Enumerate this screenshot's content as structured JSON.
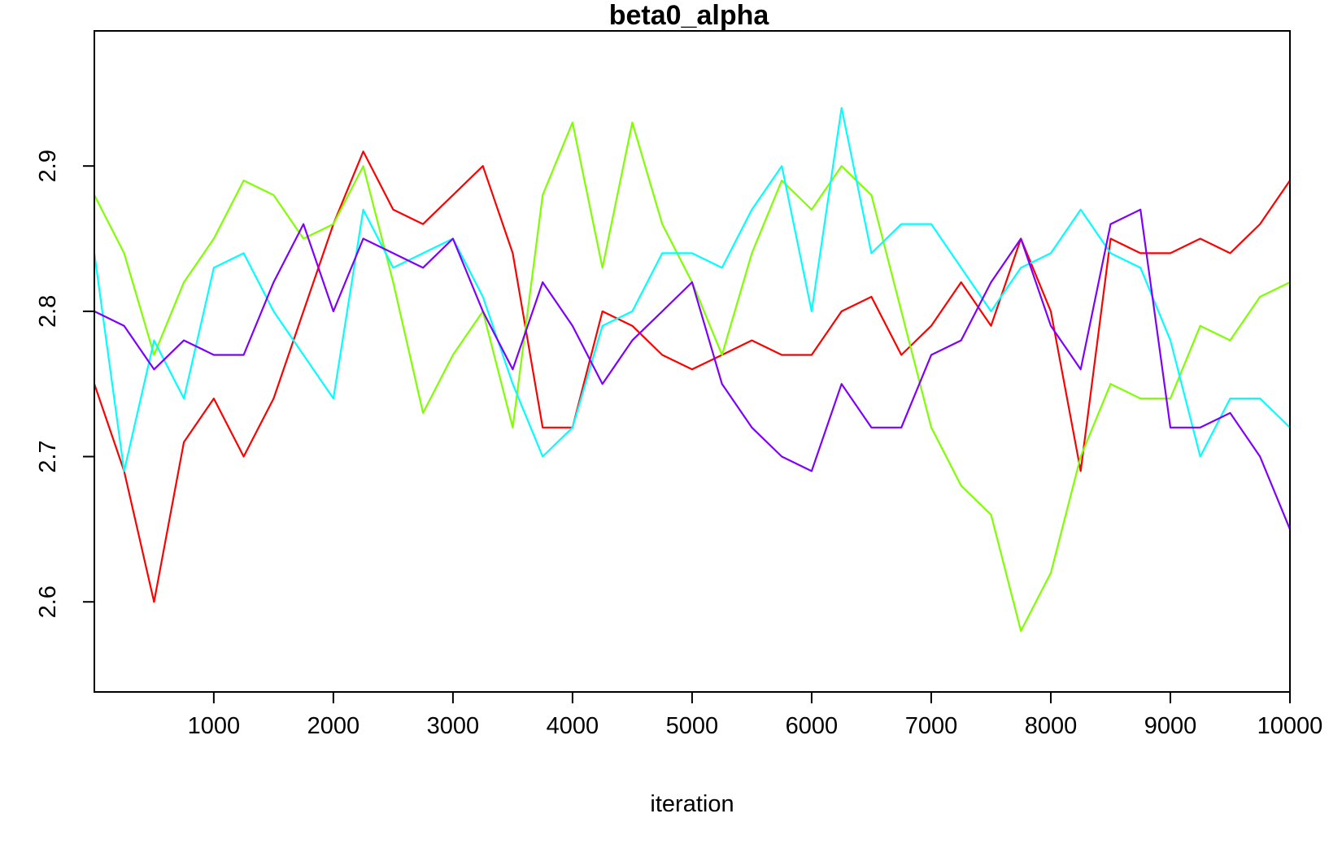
{
  "chart_data": {
    "type": "line",
    "title": "beta0_alpha",
    "xlabel": "iteration",
    "ylabel": "",
    "xlim": [
      1,
      10000
    ],
    "ylim": [
      2.538,
      2.993
    ],
    "x_ticks": [
      1000,
      2000,
      3000,
      4000,
      5000,
      6000,
      7000,
      8000,
      9000,
      10000
    ],
    "x_tick_labels": [
      "1000",
      "2000",
      "3000",
      "4000",
      "5000",
      "6000",
      "7000",
      "8000",
      "9000",
      "10000"
    ],
    "y_ticks": [
      2.6,
      2.7,
      2.8,
      2.9
    ],
    "y_tick_labels": [
      "2.6",
      "2.7",
      "2.8",
      "2.9"
    ],
    "grid": false,
    "legend": "none",
    "x": [
      0,
      250,
      500,
      750,
      1000,
      1250,
      1500,
      1750,
      2000,
      2250,
      2500,
      2750,
      3000,
      3250,
      3500,
      3750,
      4000,
      4250,
      4500,
      4750,
      5000,
      5250,
      5500,
      5750,
      6000,
      6250,
      6500,
      6750,
      7000,
      7250,
      7500,
      7750,
      8000,
      8250,
      8500,
      8750,
      9000,
      9250,
      9500,
      9750,
      10000
    ],
    "series": [
      {
        "color": "#ff0000",
        "values": [
          2.75,
          2.69,
          2.6,
          2.71,
          2.74,
          2.7,
          2.74,
          2.8,
          2.86,
          2.91,
          2.87,
          2.86,
          2.88,
          2.9,
          2.84,
          2.72,
          2.72,
          2.8,
          2.79,
          2.77,
          2.76,
          2.77,
          2.78,
          2.77,
          2.77,
          2.8,
          2.81,
          2.77,
          2.79,
          2.82,
          2.79,
          2.85,
          2.8,
          2.69,
          2.85,
          2.84,
          2.84,
          2.85,
          2.84,
          2.86,
          2.89
        ]
      },
      {
        "color": "#7fff00",
        "values": [
          2.88,
          2.84,
          2.77,
          2.82,
          2.85,
          2.89,
          2.88,
          2.85,
          2.86,
          2.9,
          2.82,
          2.73,
          2.77,
          2.8,
          2.72,
          2.88,
          2.93,
          2.83,
          2.93,
          2.86,
          2.82,
          2.77,
          2.84,
          2.89,
          2.87,
          2.9,
          2.88,
          2.8,
          2.72,
          2.68,
          2.66,
          2.58,
          2.62,
          2.7,
          2.75,
          2.74,
          2.74,
          2.79,
          2.78,
          2.81,
          2.82
        ]
      },
      {
        "color": "#00ffff",
        "values": [
          2.84,
          2.69,
          2.78,
          2.74,
          2.83,
          2.84,
          2.8,
          2.77,
          2.74,
          2.87,
          2.83,
          2.84,
          2.85,
          2.81,
          2.75,
          2.7,
          2.72,
          2.79,
          2.8,
          2.84,
          2.84,
          2.83,
          2.87,
          2.9,
          2.8,
          2.94,
          2.84,
          2.86,
          2.86,
          2.83,
          2.8,
          2.83,
          2.84,
          2.87,
          2.84,
          2.83,
          2.78,
          2.7,
          2.74,
          2.74,
          2.72
        ]
      },
      {
        "color": "#7f00ff",
        "values": [
          2.8,
          2.79,
          2.76,
          2.78,
          2.77,
          2.77,
          2.82,
          2.86,
          2.8,
          2.85,
          2.84,
          2.83,
          2.85,
          2.8,
          2.76,
          2.82,
          2.79,
          2.75,
          2.78,
          2.8,
          2.82,
          2.75,
          2.72,
          2.7,
          2.69,
          2.75,
          2.72,
          2.72,
          2.77,
          2.78,
          2.82,
          2.85,
          2.79,
          2.76,
          2.86,
          2.87,
          2.72,
          2.72,
          2.73,
          2.7,
          2.65
        ]
      }
    ]
  }
}
